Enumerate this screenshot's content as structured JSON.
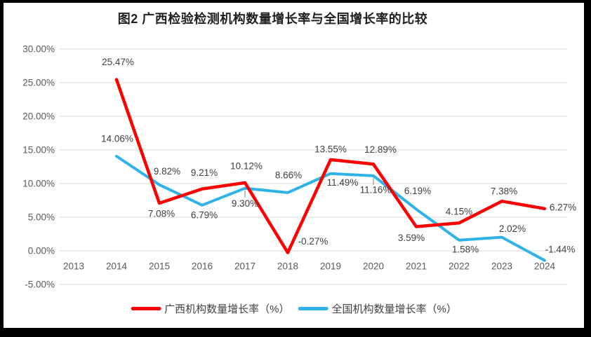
{
  "title": "图2 广西检验检测机构数量增长率与全国增长率的比较",
  "chart_data": {
    "type": "line",
    "title": "图2 广西检验检测机构数量增长率与全国增长率的比较",
    "categories": [
      "2013",
      "2014",
      "2015",
      "2016",
      "2017",
      "2018",
      "2019",
      "2020",
      "2021",
      "2022",
      "2023",
      "2024"
    ],
    "series": [
      {
        "name": "广西机构数量增长率（%）",
        "color": "#fe0000",
        "stroke_width": 4.5,
        "values": [
          null,
          25.47,
          7.08,
          9.21,
          10.12,
          -0.27,
          13.55,
          12.89,
          3.59,
          4.15,
          7.38,
          6.27
        ],
        "label_offsets": [
          null,
          [
            2,
            -25
          ],
          [
            3,
            15
          ],
          [
            3,
            -23
          ],
          [
            2,
            -24
          ],
          [
            36,
            -16
          ],
          [
            0,
            -15
          ],
          [
            10,
            -21
          ],
          [
            -7,
            16
          ],
          [
            0,
            -16
          ],
          [
            3,
            -14
          ],
          [
            26,
            -2
          ]
        ],
        "label_leader_indices": []
      },
      {
        "name": "全国机构数量增长率（%）",
        "color": "#2eb3e8",
        "stroke_width": 4,
        "values": [
          null,
          14.06,
          9.82,
          6.79,
          9.3,
          8.66,
          11.49,
          11.16,
          6.19,
          1.58,
          2.02,
          -1.44
        ],
        "label_offsets": [
          null,
          [
            1,
            -25
          ],
          [
            11,
            -19
          ],
          [
            3,
            14
          ],
          [
            0,
            22
          ],
          [
            1,
            -25
          ],
          [
            17,
            13
          ],
          [
            3,
            20
          ],
          [
            2,
            -26
          ],
          [
            9,
            13
          ],
          [
            15,
            -12
          ],
          [
            22,
            -16
          ]
        ],
        "label_leader_indices": [
          4,
          7
        ]
      }
    ],
    "ylim": [
      -5,
      30
    ],
    "ytick_step": 5,
    "ytick_labels": [
      "30.00%",
      "25.00%",
      "20.00%",
      "15.00%",
      "10.00%",
      "5.00%",
      "0.00%",
      "-5.00%"
    ],
    "value_suffix": "%",
    "grid": true,
    "legend_position": "bottom",
    "colors": {
      "gridline": "#d9d9d9",
      "tick_label": "#595959",
      "data_label": "#404040",
      "leader": "#a6a6a6",
      "frame": "#000000",
      "background": "#ffffff"
    }
  }
}
